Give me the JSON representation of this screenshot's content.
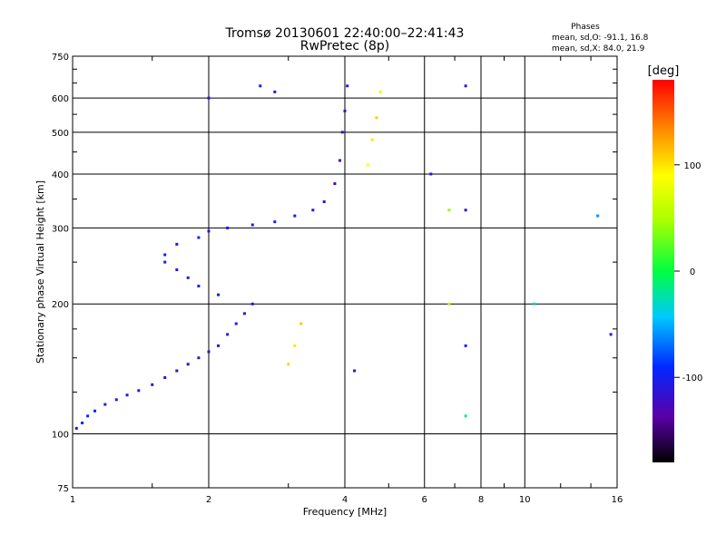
{
  "chart_data": {
    "type": "scatter",
    "title": "Tromsø 20130601 22:40:00–22:41:43",
    "subtitle": "RwPretec (8p)",
    "xlabel": "Frequency [MHz]",
    "ylabel": "Stationary phase Virtual Height [km]",
    "x_scale": "log",
    "y_scale": "log",
    "xlim": [
      1,
      16
    ],
    "ylim": [
      75,
      750
    ],
    "x_ticks": [
      1,
      2,
      4,
      6,
      8,
      10,
      16
    ],
    "y_ticks": [
      75,
      100,
      200,
      300,
      400,
      500,
      600,
      750
    ],
    "grid": true,
    "stats": {
      "heading": "Phases",
      "line_o": "mean, sd,O: -91.1, 16.8",
      "line_x": "mean, sd,X:  84.0, 21.9"
    },
    "colorbar": {
      "label": "[deg]",
      "range": [
        -180,
        180
      ],
      "ticks": [
        100,
        0,
        -100
      ]
    },
    "series": [
      {
        "points": [
          [
            1.02,
            103,
            -100
          ],
          [
            1.05,
            106,
            -95
          ],
          [
            1.08,
            110,
            -90
          ],
          [
            1.12,
            113,
            -95
          ],
          [
            1.18,
            117,
            -100
          ],
          [
            1.25,
            120,
            -105
          ],
          [
            1.32,
            123,
            -100
          ],
          [
            1.4,
            126,
            -100
          ],
          [
            1.5,
            130,
            -110
          ],
          [
            1.6,
            135,
            -115
          ],
          [
            1.7,
            140,
            -120
          ],
          [
            1.8,
            145,
            -120
          ],
          [
            1.9,
            150,
            -115
          ],
          [
            2.0,
            155,
            -120
          ],
          [
            2.1,
            160,
            -110
          ],
          [
            2.2,
            170,
            -115
          ],
          [
            2.3,
            180,
            -100
          ],
          [
            2.4,
            190,
            -105
          ],
          [
            2.5,
            200,
            -110
          ],
          [
            2.1,
            210,
            -100
          ],
          [
            1.9,
            220,
            -95
          ],
          [
            1.8,
            230,
            -105
          ],
          [
            1.7,
            240,
            -110
          ],
          [
            1.6,
            250,
            -100
          ],
          [
            1.6,
            260,
            -95
          ],
          [
            1.7,
            275,
            -105
          ],
          [
            1.9,
            285,
            -100
          ],
          [
            2.0,
            295,
            -110
          ],
          [
            2.2,
            300,
            -105
          ],
          [
            2.5,
            305,
            -100
          ],
          [
            2.8,
            310,
            -100
          ],
          [
            3.1,
            320,
            -105
          ],
          [
            3.4,
            330,
            -115
          ],
          [
            3.6,
            345,
            -120
          ],
          [
            3.8,
            380,
            -125
          ],
          [
            3.9,
            430,
            -130
          ],
          [
            3.95,
            500,
            -120
          ],
          [
            4.0,
            560,
            -110
          ],
          [
            4.05,
            640,
            -110
          ],
          [
            4.5,
            420,
            90
          ],
          [
            4.6,
            480,
            100
          ],
          [
            4.7,
            540,
            110
          ],
          [
            4.8,
            620,
            80
          ],
          [
            3.1,
            160,
            100
          ],
          [
            3.2,
            180,
            110
          ],
          [
            3.0,
            145,
            105
          ],
          [
            2.0,
            600,
            -110
          ],
          [
            2.6,
            640,
            -100
          ],
          [
            2.8,
            620,
            -110
          ],
          [
            7.4,
            640,
            -110
          ],
          [
            7.4,
            330,
            -110
          ],
          [
            7.4,
            160,
            -100
          ],
          [
            7.4,
            110,
            -10
          ],
          [
            6.8,
            330,
            40
          ],
          [
            6.8,
            200,
            50
          ],
          [
            10.5,
            200,
            -30
          ],
          [
            14.5,
            320,
            -60
          ],
          [
            15.5,
            170,
            -110
          ],
          [
            6.2,
            400,
            -110
          ],
          [
            4.2,
            140,
            -120
          ]
        ]
      }
    ]
  }
}
